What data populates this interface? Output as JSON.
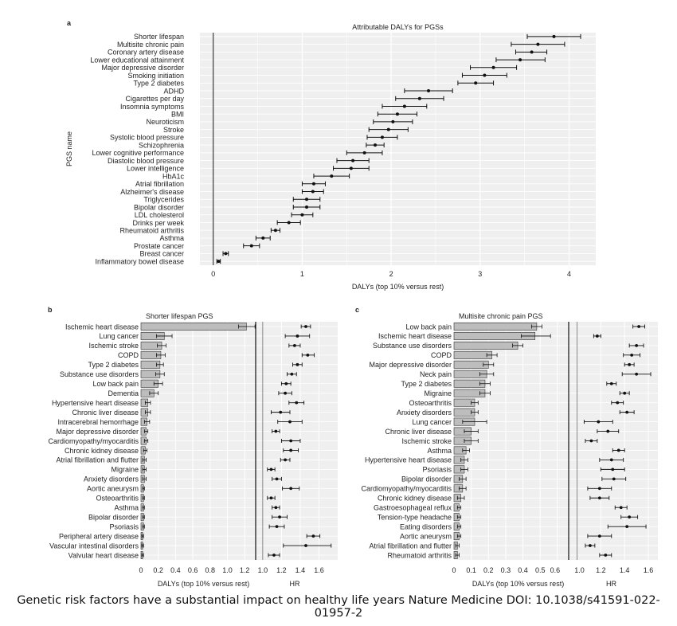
{
  "caption": "Genetic risk factors have a substantial impact on healthy life years Nature Medicine DOI: 10.1038/s41591-022-01957-2",
  "colors": {
    "panel_bg": "#efefef",
    "grid": "#ffffff",
    "bar_fill": "#bdbdbd",
    "ink": "#111111"
  },
  "chart_data": [
    {
      "id": "a",
      "panel_label": "a",
      "type": "scatter",
      "subtype": "forest",
      "title": "Attributable DALYs for PGSs",
      "xlabel": "DALYs (top 10% versus rest)",
      "ylabel": "PGS name",
      "xlim": [
        -0.15,
        4.3
      ],
      "xticks": [
        0,
        1,
        2,
        3,
        4
      ],
      "reference_line": 0,
      "categories": [
        "Shorter lifespan",
        "Multisite chronic pain",
        "Coronary artery disease",
        "Lower educational attainment",
        "Major depressive disorder",
        "Smoking initiation",
        "Type 2 diabetes",
        "ADHD",
        "Cigarettes per day",
        "Insomnia symptoms",
        "BMI",
        "Neuroticism",
        "Stroke",
        "Systolic blood pressure",
        "Schizophrenia",
        "Lower cognitive performance",
        "Diastolic blood pressure",
        "Lower intelligence",
        "HbA1c",
        "Atrial fibrillation",
        "Alzheimer's disease",
        "Triglycerides",
        "Bipolar disorder",
        "LDL cholesterol",
        "Drinks per week",
        "Rheumatoid arthritis",
        "Asthma",
        "Prostate cancer",
        "Breast cancer",
        "Inflammatory bowel disease"
      ],
      "estimate": [
        3.83,
        3.65,
        3.58,
        3.45,
        3.15,
        3.05,
        2.95,
        2.42,
        2.32,
        2.15,
        2.07,
        2.02,
        1.97,
        1.9,
        1.82,
        1.7,
        1.57,
        1.55,
        1.33,
        1.13,
        1.12,
        1.05,
        1.05,
        1.0,
        0.85,
        0.7,
        0.56,
        0.43,
        0.14,
        0.06
      ],
      "ci_low": [
        3.53,
        3.35,
        3.4,
        3.18,
        2.89,
        2.8,
        2.75,
        2.15,
        2.05,
        1.9,
        1.85,
        1.8,
        1.75,
        1.73,
        1.72,
        1.5,
        1.39,
        1.35,
        1.13,
        1.0,
        1.0,
        0.9,
        0.9,
        0.88,
        0.72,
        0.65,
        0.48,
        0.34,
        0.11,
        0.04
      ],
      "ci_high": [
        4.13,
        3.95,
        3.75,
        3.73,
        3.41,
        3.3,
        3.15,
        2.69,
        2.59,
        2.4,
        2.29,
        2.24,
        2.19,
        2.07,
        1.92,
        1.9,
        1.75,
        1.75,
        1.53,
        1.26,
        1.24,
        1.2,
        1.2,
        1.12,
        0.98,
        0.75,
        0.64,
        0.52,
        0.17,
        0.08
      ]
    },
    {
      "id": "b",
      "panel_label": "b",
      "type": "bar",
      "title": "Shorter lifespan PGS",
      "categories": [
        "Ischemic heart disease",
        "Lung cancer",
        "Ischemic stroke",
        "COPD",
        "Type 2 diabetes",
        "Substance use disorders",
        "Low back pain",
        "Dementia",
        "Hypertensive heart disease",
        "Chronic liver disease",
        "Intracerebral hemorrhage",
        "Major depressive disorder",
        "Cardiomyopathy/myocarditis",
        "Chronic kidney disease",
        "Atrial fibrillation and flutter",
        "Migraine",
        "Anxiety disorders",
        "Aortic aneurysm",
        "Osteoarthritis",
        "Asthma",
        "Bipolar disorder",
        "Psoriasis",
        "Peripheral artery disease",
        "Vascular intestinal disorders",
        "Valvular heart disease"
      ],
      "dalys": {
        "xlabel": "DALYs (top 10% versus rest)",
        "xlim": [
          0,
          1.3
        ],
        "xticks": [
          "0",
          "0.2",
          "0.4",
          "0.6",
          "0.8",
          "1.0",
          "1.2"
        ],
        "values": [
          1.22,
          0.27,
          0.24,
          0.23,
          0.22,
          0.22,
          0.2,
          0.15,
          0.08,
          0.08,
          0.07,
          0.06,
          0.06,
          0.05,
          0.04,
          0.04,
          0.04,
          0.03,
          0.03,
          0.03,
          0.03,
          0.03,
          0.02,
          0.02,
          0.02
        ],
        "ci_low": [
          1.13,
          0.18,
          0.19,
          0.18,
          0.18,
          0.17,
          0.15,
          0.1,
          0.05,
          0.05,
          0.04,
          0.04,
          0.04,
          0.03,
          0.02,
          0.02,
          0.02,
          0.02,
          0.02,
          0.02,
          0.02,
          0.02,
          0.01,
          0.01,
          0.01
        ],
        "ci_high": [
          1.32,
          0.36,
          0.29,
          0.28,
          0.26,
          0.27,
          0.25,
          0.2,
          0.11,
          0.11,
          0.1,
          0.08,
          0.08,
          0.07,
          0.06,
          0.06,
          0.06,
          0.04,
          0.04,
          0.04,
          0.04,
          0.04,
          0.03,
          0.03,
          0.03
        ]
      },
      "hr": {
        "xlabel": "HR",
        "xlim": [
          0.95,
          1.8
        ],
        "xticks": [
          "1.0",
          "1.2",
          "1.4",
          "1.6"
        ],
        "reference_line": 1.0,
        "values": [
          1.46,
          1.37,
          1.34,
          1.48,
          1.37,
          1.31,
          1.25,
          1.24,
          1.36,
          1.19,
          1.29,
          1.14,
          1.3,
          1.3,
          1.24,
          1.09,
          1.15,
          1.3,
          1.09,
          1.14,
          1.18,
          1.15,
          1.54,
          1.46,
          1.12
        ],
        "ci_low": [
          1.41,
          1.24,
          1.28,
          1.42,
          1.32,
          1.26,
          1.2,
          1.17,
          1.28,
          1.09,
          1.16,
          1.1,
          1.2,
          1.22,
          1.19,
          1.05,
          1.1,
          1.21,
          1.05,
          1.1,
          1.1,
          1.07,
          1.47,
          1.22,
          1.06
        ],
        "ci_high": [
          1.51,
          1.5,
          1.4,
          1.55,
          1.42,
          1.36,
          1.3,
          1.31,
          1.44,
          1.29,
          1.42,
          1.18,
          1.4,
          1.38,
          1.29,
          1.13,
          1.2,
          1.39,
          1.13,
          1.18,
          1.26,
          1.23,
          1.61,
          1.73,
          1.18
        ]
      }
    },
    {
      "id": "c",
      "panel_label": "c",
      "type": "bar",
      "title": "Multisite chronic pain PGS",
      "categories": [
        "Low back pain",
        "Ischemic heart disease",
        "Substance use disorders",
        "COPD",
        "Major depressive disorder",
        "Neck pain",
        "Type 2 diabetes",
        "Migraine",
        "Osteoarthritis",
        "Anxiety disorders",
        "Lung cancer",
        "Chronic liver disease",
        "Ischemic stroke",
        "Asthma",
        "Hypertensive heart disease",
        "Psoriasis",
        "Bipolar disorder",
        "Cardiomyopathy/myocarditis",
        "Chronic kidney disease",
        "Gastroesophageal reflux",
        "Tension-type headache",
        "Eating disorders",
        "Aortic aneurysm",
        "Atrial fibrillation and flutter",
        "Rheumatoid arthritis"
      ],
      "dalys": {
        "xlabel": "DALYs (top 10% versus rest)",
        "xlim": [
          0,
          0.67
        ],
        "xticks": [
          "0",
          "0.1",
          "0.2",
          "0.3",
          "0.4",
          "0.5",
          "0.6"
        ],
        "values": [
          0.48,
          0.47,
          0.37,
          0.22,
          0.2,
          0.19,
          0.18,
          0.18,
          0.12,
          0.12,
          0.12,
          0.1,
          0.1,
          0.07,
          0.06,
          0.06,
          0.05,
          0.05,
          0.04,
          0.03,
          0.03,
          0.03,
          0.03,
          0.02,
          0.02
        ],
        "ci_low": [
          0.45,
          0.39,
          0.34,
          0.19,
          0.17,
          0.15,
          0.15,
          0.15,
          0.1,
          0.1,
          0.05,
          0.06,
          0.06,
          0.05,
          0.04,
          0.04,
          0.03,
          0.03,
          0.02,
          0.02,
          0.02,
          0.02,
          0.02,
          0.01,
          0.01
        ],
        "ci_high": [
          0.51,
          0.56,
          0.4,
          0.25,
          0.23,
          0.23,
          0.21,
          0.21,
          0.14,
          0.14,
          0.19,
          0.14,
          0.14,
          0.09,
          0.08,
          0.08,
          0.07,
          0.07,
          0.06,
          0.04,
          0.04,
          0.04,
          0.04,
          0.03,
          0.03
        ]
      },
      "hr": {
        "xlabel": "HR",
        "xlim": [
          0.95,
          1.68
        ],
        "xticks": [
          "1.0",
          "1.2",
          "1.4",
          "1.6"
        ],
        "reference_line": 1.0,
        "values": [
          1.52,
          1.17,
          1.5,
          1.46,
          1.44,
          1.5,
          1.29,
          1.4,
          1.34,
          1.42,
          1.18,
          1.26,
          1.12,
          1.35,
          1.29,
          1.3,
          1.31,
          1.19,
          1.19,
          1.37,
          1.44,
          1.42,
          1.19,
          1.11,
          1.24
        ],
        "ci_low": [
          1.47,
          1.14,
          1.44,
          1.39,
          1.4,
          1.38,
          1.25,
          1.36,
          1.29,
          1.36,
          1.06,
          1.17,
          1.07,
          1.3,
          1.19,
          1.2,
          1.21,
          1.09,
          1.11,
          1.32,
          1.37,
          1.26,
          1.09,
          1.07,
          1.19
        ],
        "ci_high": [
          1.57,
          1.2,
          1.56,
          1.53,
          1.48,
          1.62,
          1.33,
          1.44,
          1.39,
          1.48,
          1.3,
          1.35,
          1.17,
          1.4,
          1.39,
          1.4,
          1.41,
          1.29,
          1.27,
          1.42,
          1.51,
          1.58,
          1.29,
          1.15,
          1.29
        ]
      }
    }
  ]
}
